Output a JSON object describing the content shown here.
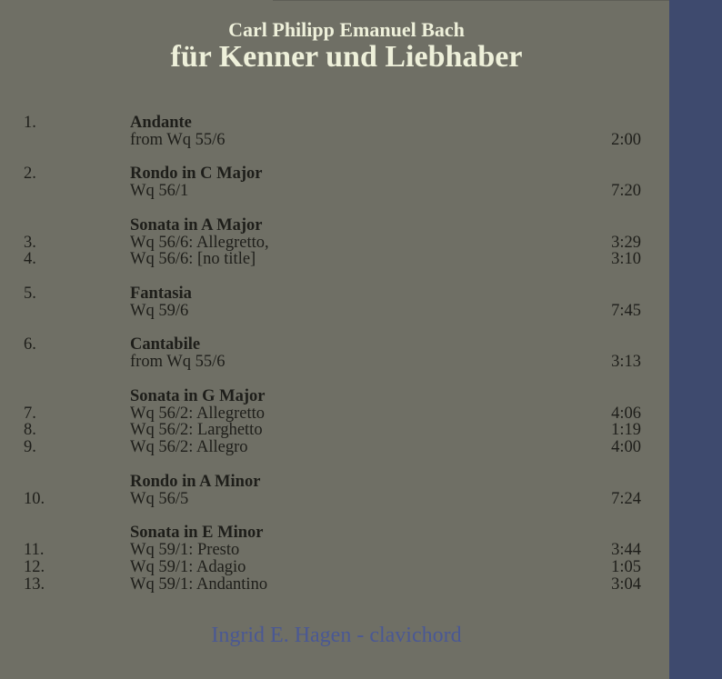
{
  "header": {
    "composer": "Carl Philipp Emanuel Bach",
    "title": "für Kenner und Liebhaber"
  },
  "groups": [
    {
      "num": "1.",
      "title": "Andante",
      "tracks": [
        {
          "num": "",
          "desc": "from Wq 55/6",
          "time": "2:00"
        }
      ]
    },
    {
      "num": "2.",
      "title": "Rondo in C Major",
      "tracks": [
        {
          "num": "",
          "desc": "Wq 56/1",
          "time": "7:20"
        }
      ]
    },
    {
      "num": "",
      "title": "Sonata in A Major",
      "tracks": [
        {
          "num": "3.",
          "desc": "Wq 56/6: Allegretto,",
          "time": "3:29"
        },
        {
          "num": "4.",
          "desc": "Wq 56/6: [no title]",
          "time": "3:10"
        }
      ]
    },
    {
      "num": "5.",
      "title": "Fantasia",
      "tracks": [
        {
          "num": "",
          "desc": "Wq 59/6",
          "time": "7:45"
        }
      ]
    },
    {
      "num": "6.",
      "title": "Cantabile",
      "tracks": [
        {
          "num": "",
          "desc": "from Wq 55/6",
          "time": "3:13"
        }
      ]
    },
    {
      "num": "",
      "title": "Sonata in G Major",
      "tracks": [
        {
          "num": "7.",
          "desc": "Wq 56/2: Allegretto",
          "time": "4:06"
        },
        {
          "num": "8.",
          "desc": "Wq 56/2: Larghetto",
          "time": "1:19"
        },
        {
          "num": "9.",
          "desc": "Wq 56/2: Allegro",
          "time": "4:00"
        }
      ]
    },
    {
      "num": "",
      "title": "Rondo in A Minor",
      "tracks": [
        {
          "num": "10.",
          "desc": "Wq 56/5",
          "time": "7:24"
        }
      ]
    },
    {
      "num": "",
      "title": "Sonata in E Minor",
      "tracks": [
        {
          "num": "11.",
          "desc": "Wq 59/1: Presto",
          "time": "3:44"
        },
        {
          "num": "12.",
          "desc": "Wq 59/1: Adagio",
          "time": "1:05"
        },
        {
          "num": "13.",
          "desc": "Wq 59/1: Andantino",
          "time": "3:04"
        }
      ]
    }
  ],
  "artist": "Ingrid E. Hagen - clavichord",
  "colors": {
    "background": "#6f6f65",
    "sidebar": "#3e4a6e",
    "title": "#eef0da",
    "artist": "#4a5894"
  }
}
